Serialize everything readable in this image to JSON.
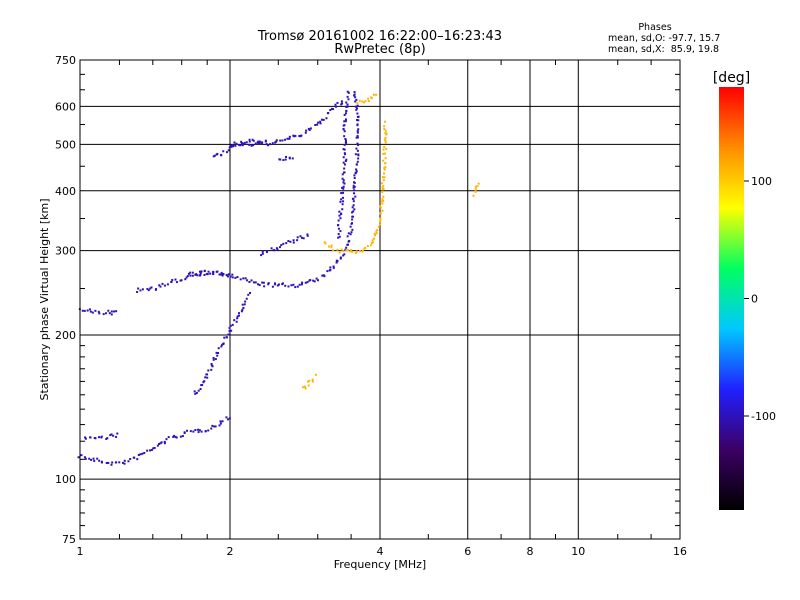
{
  "chart_data": {
    "type": "scatter",
    "title": "Tromsø 20161002 16:22:00–16:23:43",
    "subtitle": "RwPretec (8p)",
    "xlabel": "Frequency [MHz]",
    "ylabel": "Stationary phase Virtual Height [km]",
    "x_scale": "log",
    "y_scale": "log",
    "xlim": [
      1,
      16
    ],
    "ylim": [
      75,
      750
    ],
    "x_ticks": [
      1,
      2,
      4,
      6,
      8,
      10,
      16
    ],
    "y_ticks": [
      75,
      100,
      200,
      300,
      400,
      500,
      600,
      750
    ],
    "grid": true,
    "legend": {
      "title": "Phases",
      "lines": [
        "mean, sd,O: -97.7, 15.7",
        "mean, sd,X:  85.9, 19.8"
      ],
      "placement": "top-right"
    },
    "colorbar": {
      "label": "[deg]",
      "ticks": [
        100,
        0,
        -100
      ],
      "range": [
        -180,
        180
      ],
      "colors": [
        "#000000",
        "#3c0064",
        "#2020ff",
        "#00c8ff",
        "#00ff60",
        "#ffff00",
        "#ff8c00",
        "#ff0000"
      ]
    },
    "series": [
      {
        "phase": -100,
        "segments": [
          [
            [
              1.0,
              112
            ],
            [
              1.05,
              110
            ],
            [
              1.1,
              109
            ],
            [
              1.15,
              108
            ],
            [
              1.2,
              108
            ],
            [
              1.25,
              109
            ],
            [
              1.3,
              111
            ]
          ],
          [
            [
              1.3,
              111
            ],
            [
              1.4,
              116
            ],
            [
              1.5,
              121
            ],
            [
              1.6,
              124
            ],
            [
              1.7,
              126
            ],
            [
              1.8,
              127
            ],
            [
              1.9,
              130
            ],
            [
              2.0,
              136
            ]
          ],
          [
            [
              1.02,
              122
            ],
            [
              1.1,
              122
            ],
            [
              1.2,
              124
            ]
          ],
          [
            [
              1.0,
              225
            ],
            [
              1.1,
              223
            ],
            [
              1.2,
              222
            ]
          ],
          [
            [
              1.3,
              248
            ],
            [
              1.4,
              250
            ],
            [
              1.5,
              255
            ],
            [
              1.6,
              262
            ],
            [
              1.7,
              268
            ],
            [
              1.8,
              270
            ],
            [
              1.9,
              269
            ],
            [
              2.0,
              266
            ]
          ],
          [
            [
              1.65,
              268
            ],
            [
              1.8,
              270
            ],
            [
              2.0,
              266
            ],
            [
              2.2,
              258
            ],
            [
              2.4,
              254
            ],
            [
              2.7,
              254
            ],
            [
              3.0,
              260
            ],
            [
              3.2,
              275
            ],
            [
              3.4,
              300
            ],
            [
              3.5,
              330
            ],
            [
              3.55,
              390
            ],
            [
              3.6,
              480
            ],
            [
              3.6,
              600
            ],
            [
              3.55,
              650
            ]
          ],
          [
            [
              3.3,
              320
            ],
            [
              3.35,
              380
            ],
            [
              3.4,
              460
            ],
            [
              3.4,
              550
            ],
            [
              3.45,
              650
            ]
          ],
          [
            [
              2.3,
              295
            ],
            [
              2.5,
              305
            ],
            [
              2.7,
              315
            ],
            [
              2.9,
              325
            ]
          ],
          [
            [
              1.85,
              470
            ],
            [
              1.95,
              480
            ],
            [
              2.05,
              500
            ],
            [
              2.2,
              510
            ],
            [
              2.4,
              500
            ]
          ],
          [
            [
              2.0,
              495
            ],
            [
              2.2,
              500
            ],
            [
              2.4,
              505
            ],
            [
              2.6,
              512
            ],
            [
              2.8,
              525
            ],
            [
              3.0,
              550
            ],
            [
              3.2,
              590
            ],
            [
              3.4,
              620
            ]
          ],
          [
            [
              2.5,
              462
            ],
            [
              2.6,
              468
            ],
            [
              2.7,
              470
            ]
          ],
          [
            [
              1.7,
              150
            ],
            [
              1.8,
              165
            ],
            [
              1.9,
              185
            ],
            [
              2.0,
              205
            ],
            [
              2.1,
              225
            ],
            [
              2.2,
              245
            ]
          ]
        ]
      },
      {
        "phase": 110,
        "segments": [
          [
            [
              3.1,
              310
            ],
            [
              3.3,
              300
            ],
            [
              3.5,
              298
            ],
            [
              3.7,
              300
            ],
            [
              3.85,
              310
            ],
            [
              4.0,
              340
            ],
            [
              4.05,
              400
            ],
            [
              4.1,
              500
            ],
            [
              4.1,
              560
            ]
          ],
          [
            [
              3.6,
              610
            ],
            [
              3.8,
              620
            ],
            [
              3.95,
              640
            ]
          ],
          [
            [
              2.8,
              155
            ],
            [
              2.9,
              160
            ],
            [
              3.0,
              165
            ]
          ],
          [
            [
              6.2,
              390
            ],
            [
              6.3,
              420
            ]
          ]
        ]
      }
    ]
  }
}
